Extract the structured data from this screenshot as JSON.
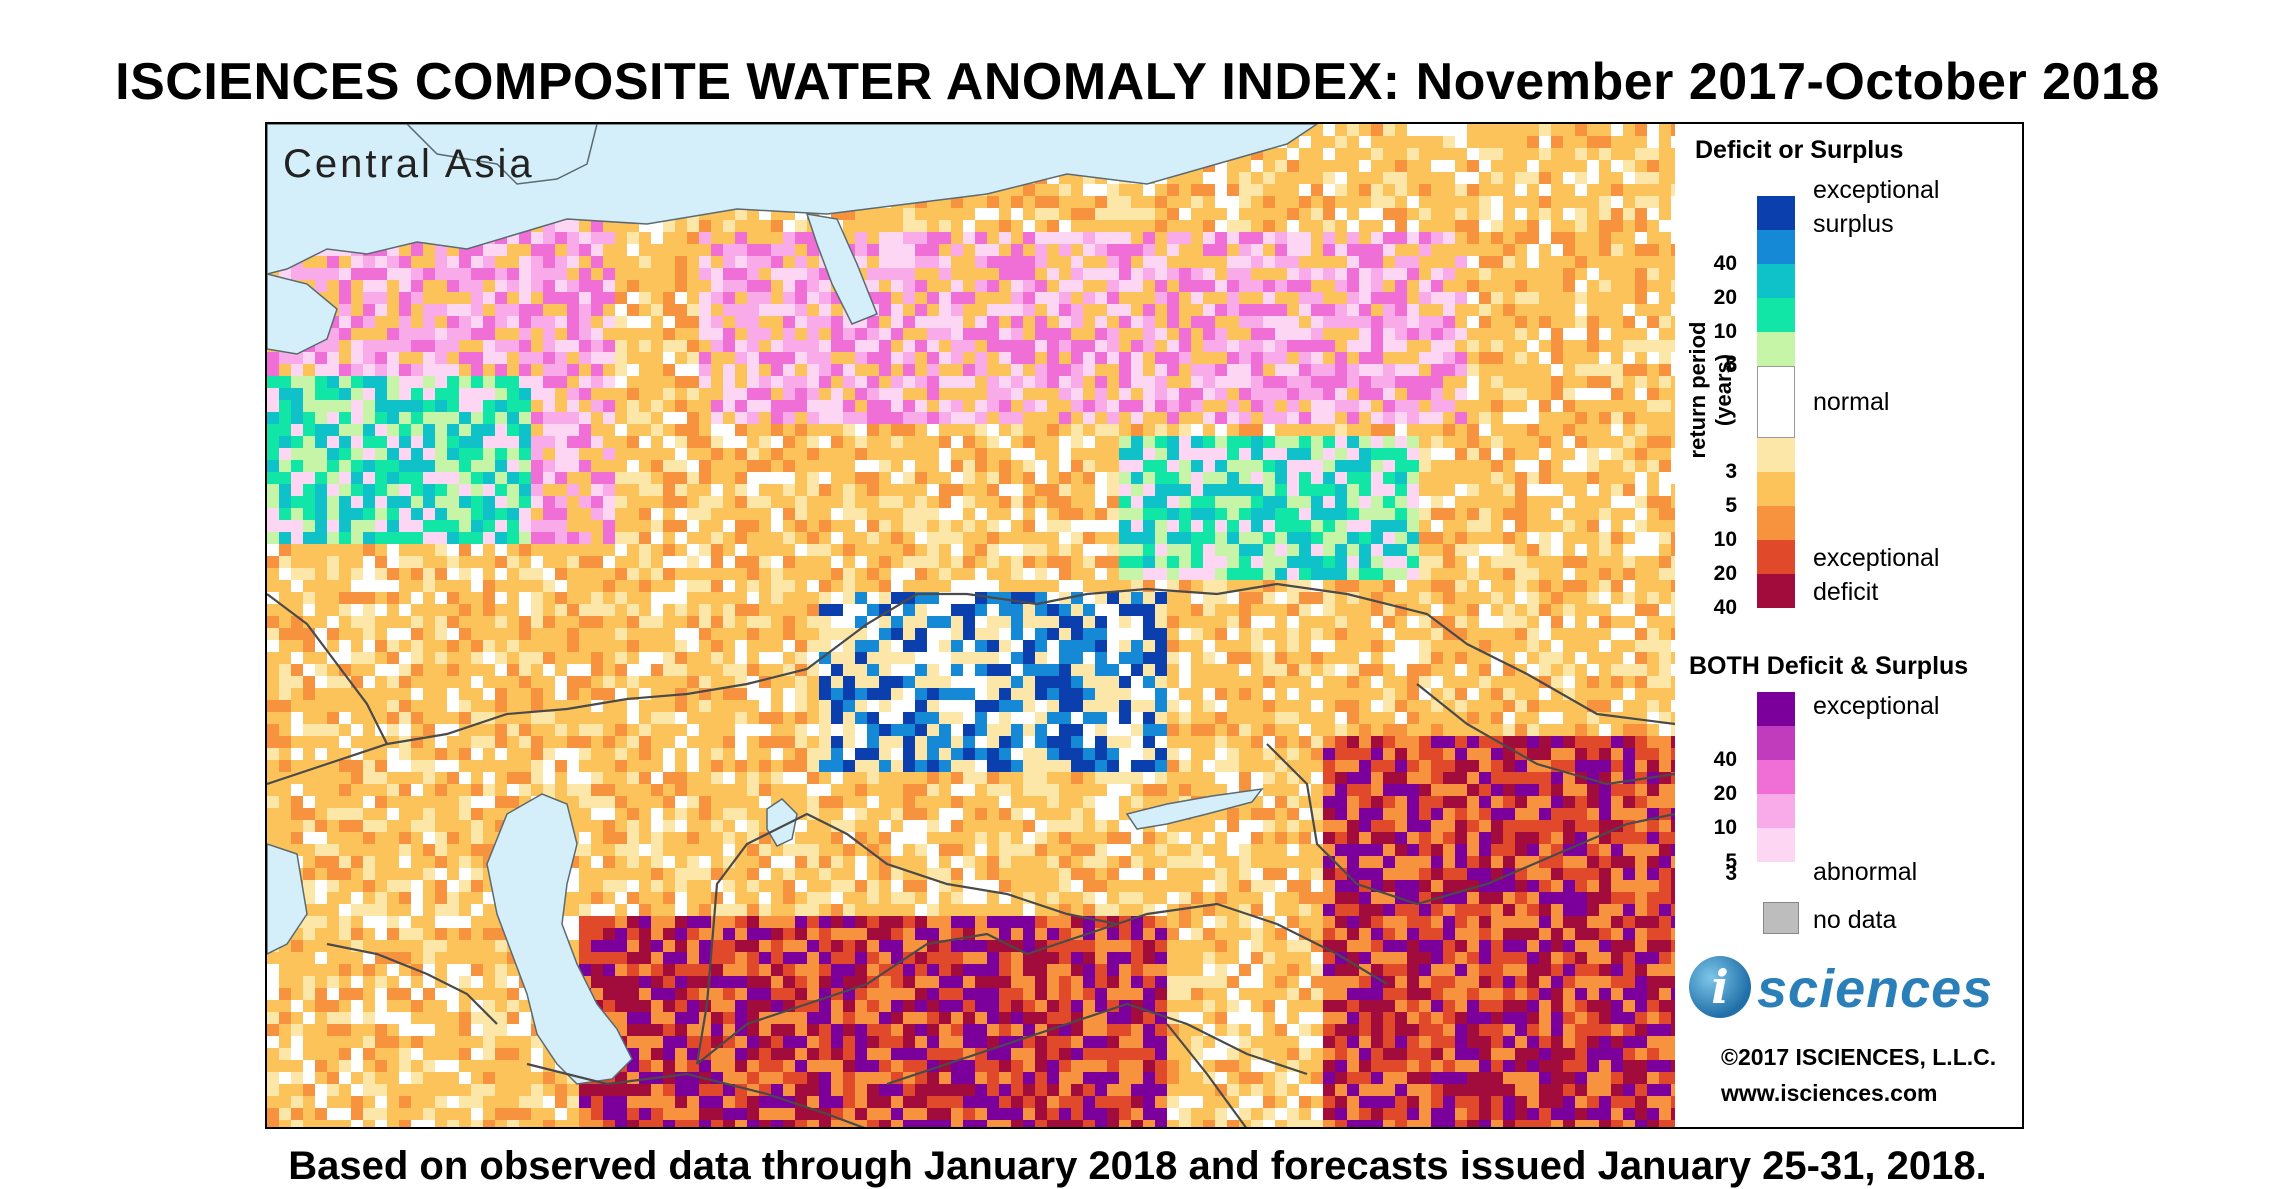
{
  "title": "ISCIENCES COMPOSITE WATER ANOMALY INDEX: November 2017-October 2018",
  "region_label": "Central Asia",
  "footer": "Based on observed data through January 2018 and forecasts issued January 25-31, 2018.",
  "legend": {
    "deficit_surplus_heading": "Deficit or Surplus",
    "axis_label": "return period (years)",
    "surplus_swatches": [
      {
        "tick": "",
        "color": "#0b3fae"
      },
      {
        "tick": "40",
        "color": "#1689d6"
      },
      {
        "tick": "20",
        "color": "#0fc1c9"
      },
      {
        "tick": "10",
        "color": "#12e6a6"
      },
      {
        "tick": "5",
        "color": "#c6f5a8"
      }
    ],
    "normal_tick": "3",
    "deficit_swatches": [
      {
        "tick": "3",
        "color": "#fde7a8"
      },
      {
        "tick": "5",
        "color": "#fbc35a"
      },
      {
        "tick": "10",
        "color": "#f7923f"
      },
      {
        "tick": "20",
        "color": "#e04a2a"
      },
      {
        "tick": "40",
        "color": "#a10c3c"
      }
    ],
    "label_exceptional_surplus_1": "exceptional",
    "label_exceptional_surplus_2": "surplus",
    "label_normal": "normal",
    "label_exceptional_deficit_1": "exceptional",
    "label_exceptional_deficit_2": "deficit",
    "both_heading": "BOTH Deficit & Surplus",
    "both_swatches": [
      {
        "tick": "",
        "color": "#7b009b"
      },
      {
        "tick": "40",
        "color": "#c13cbc"
      },
      {
        "tick": "20",
        "color": "#ef6fd6"
      },
      {
        "tick": "10",
        "color": "#f9aae8"
      },
      {
        "tick": "5",
        "color": "#fdd6f3"
      }
    ],
    "both_last_tick": "3",
    "label_both_exceptional": "exceptional",
    "label_both_abnormal": "abnormal",
    "nodata_color": "#bdbdbd",
    "label_no_data": "no data"
  },
  "logo_text": "sciences",
  "logo_letter": "i",
  "copyright": "©2017 ISCIENCES, L.L.C.",
  "website": "www.isciences.com",
  "colors": {
    "water": "#d5effa",
    "border": "#4a4a4a"
  }
}
